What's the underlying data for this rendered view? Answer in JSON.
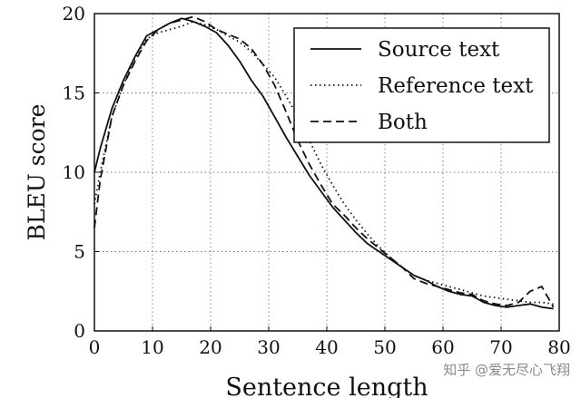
{
  "chart_data": {
    "type": "line",
    "title": "",
    "xlabel": "Sentence length",
    "ylabel": "BLEU score",
    "xlim": [
      0,
      80
    ],
    "ylim": [
      0,
      20
    ],
    "xticks": [
      0,
      10,
      20,
      30,
      40,
      50,
      60,
      70,
      80
    ],
    "yticks": [
      0,
      5,
      10,
      15,
      20
    ],
    "grid": true,
    "legend_position": "top-right",
    "series": [
      {
        "name": "Source text",
        "style": "solid",
        "points": [
          [
            0,
            10.0
          ],
          [
            1,
            11.5
          ],
          [
            3,
            14.0
          ],
          [
            5,
            15.8
          ],
          [
            7,
            17.3
          ],
          [
            9,
            18.6
          ],
          [
            11,
            19.0
          ],
          [
            13,
            19.4
          ],
          [
            15,
            19.7
          ],
          [
            17,
            19.5
          ],
          [
            19,
            19.2
          ],
          [
            21,
            18.8
          ],
          [
            23,
            18.0
          ],
          [
            25,
            17.0
          ],
          [
            27,
            15.8
          ],
          [
            29,
            14.8
          ],
          [
            31,
            13.5
          ],
          [
            33,
            12.2
          ],
          [
            35,
            11.0
          ],
          [
            37,
            9.8
          ],
          [
            39,
            8.8
          ],
          [
            41,
            7.8
          ],
          [
            43,
            7.0
          ],
          [
            45,
            6.2
          ],
          [
            47,
            5.5
          ],
          [
            49,
            5.0
          ],
          [
            51,
            4.5
          ],
          [
            53,
            4.0
          ],
          [
            55,
            3.5
          ],
          [
            57,
            3.2
          ],
          [
            59,
            2.8
          ],
          [
            61,
            2.5
          ],
          [
            63,
            2.3
          ],
          [
            65,
            2.2
          ],
          [
            67,
            1.8
          ],
          [
            69,
            1.6
          ],
          [
            71,
            1.5
          ],
          [
            73,
            1.6
          ],
          [
            75,
            1.7
          ],
          [
            77,
            1.5
          ],
          [
            79,
            1.4
          ]
        ]
      },
      {
        "name": "Reference text",
        "style": "dotted",
        "points": [
          [
            0,
            8.0
          ],
          [
            1,
            10.0
          ],
          [
            3,
            13.5
          ],
          [
            5,
            15.5
          ],
          [
            7,
            17.2
          ],
          [
            9,
            18.4
          ],
          [
            11,
            18.8
          ],
          [
            13,
            19.0
          ],
          [
            15,
            19.2
          ],
          [
            17,
            19.5
          ],
          [
            19,
            19.3
          ],
          [
            21,
            19.0
          ],
          [
            23,
            18.6
          ],
          [
            25,
            18.2
          ],
          [
            27,
            17.6
          ],
          [
            29,
            16.8
          ],
          [
            31,
            16.0
          ],
          [
            33,
            14.8
          ],
          [
            35,
            13.5
          ],
          [
            37,
            12.0
          ],
          [
            39,
            10.5
          ],
          [
            41,
            9.2
          ],
          [
            43,
            8.0
          ],
          [
            45,
            7.0
          ],
          [
            47,
            6.1
          ],
          [
            49,
            5.3
          ],
          [
            51,
            4.6
          ],
          [
            53,
            4.0
          ],
          [
            55,
            3.5
          ],
          [
            57,
            3.2
          ],
          [
            59,
            3.0
          ],
          [
            61,
            2.8
          ],
          [
            63,
            2.6
          ],
          [
            65,
            2.4
          ],
          [
            67,
            2.2
          ],
          [
            69,
            2.1
          ],
          [
            71,
            2.0
          ],
          [
            73,
            1.9
          ],
          [
            75,
            1.8
          ],
          [
            77,
            1.8
          ],
          [
            79,
            1.7
          ]
        ]
      },
      {
        "name": "Both",
        "style": "dashed",
        "points": [
          [
            0,
            6.5
          ],
          [
            1,
            9.5
          ],
          [
            3,
            13.5
          ],
          [
            5,
            15.5
          ],
          [
            7,
            17.0
          ],
          [
            9,
            18.3
          ],
          [
            11,
            19.0
          ],
          [
            13,
            19.4
          ],
          [
            15,
            19.6
          ],
          [
            17,
            19.8
          ],
          [
            19,
            19.5
          ],
          [
            21,
            19.0
          ],
          [
            23,
            18.7
          ],
          [
            25,
            18.4
          ],
          [
            27,
            17.8
          ],
          [
            29,
            16.8
          ],
          [
            31,
            15.5
          ],
          [
            33,
            13.8
          ],
          [
            35,
            12.0
          ],
          [
            37,
            10.5
          ],
          [
            39,
            9.2
          ],
          [
            41,
            8.0
          ],
          [
            43,
            7.3
          ],
          [
            45,
            6.5
          ],
          [
            47,
            5.8
          ],
          [
            49,
            5.2
          ],
          [
            51,
            4.6
          ],
          [
            53,
            4.0
          ],
          [
            55,
            3.3
          ],
          [
            57,
            3.0
          ],
          [
            59,
            2.8
          ],
          [
            61,
            2.6
          ],
          [
            63,
            2.4
          ],
          [
            65,
            2.3
          ],
          [
            67,
            1.9
          ],
          [
            69,
            1.7
          ],
          [
            71,
            1.6
          ],
          [
            73,
            1.8
          ],
          [
            75,
            2.5
          ],
          [
            77,
            2.8
          ],
          [
            79,
            1.5
          ]
        ]
      }
    ]
  },
  "watermark": "知乎 @爱无尽心飞翔"
}
